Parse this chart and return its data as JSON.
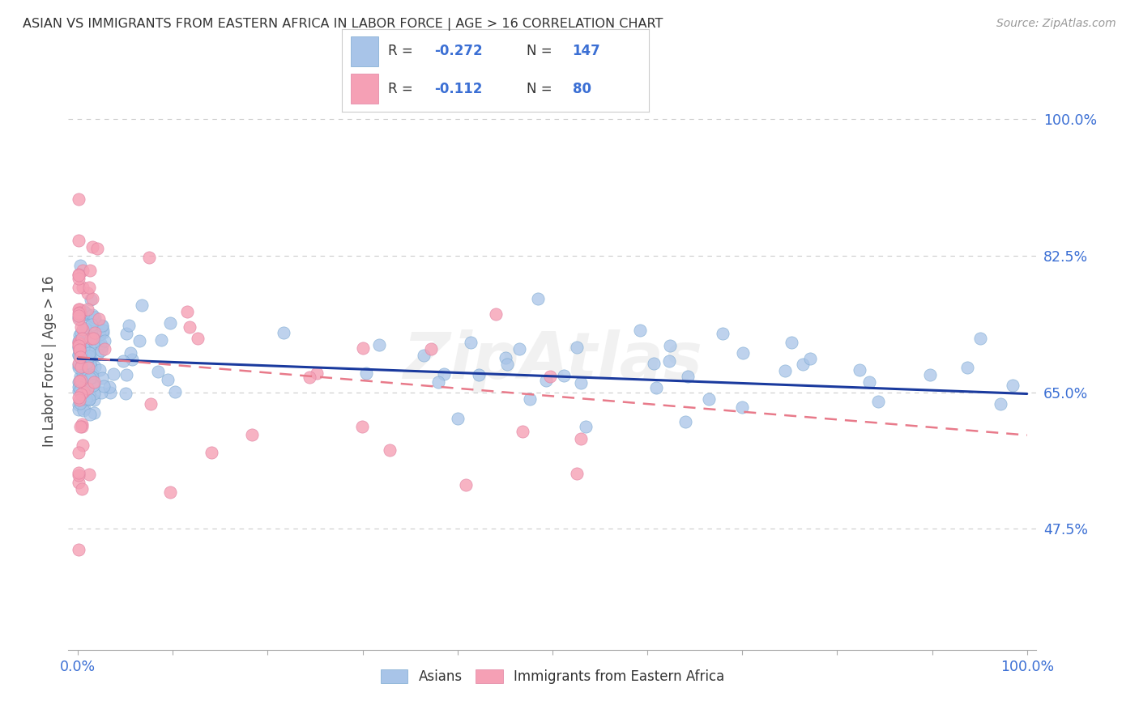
{
  "title": "ASIAN VS IMMIGRANTS FROM EASTERN AFRICA IN LABOR FORCE | AGE > 16 CORRELATION CHART",
  "source": "Source: ZipAtlas.com",
  "ylabel": "In Labor Force | Age > 16",
  "ytick_labels": [
    "47.5%",
    "65.0%",
    "82.5%",
    "100.0%"
  ],
  "ytick_values": [
    0.475,
    0.65,
    0.825,
    1.0
  ],
  "xlim": [
    -0.01,
    1.01
  ],
  "ylim": [
    0.32,
    1.06
  ],
  "watermark": "ZipAtlas",
  "color_asian": "#a8c4e8",
  "color_africa": "#f5a0b5",
  "line_color_asian": "#1a3a9e",
  "line_color_africa": "#e87a8a",
  "background_color": "#ffffff",
  "grid_color": "#cccccc",
  "label_color": "#3b6fd4",
  "asian_line_start_y": 0.693,
  "asian_line_end_y": 0.648,
  "africa_line_start_y": 0.695,
  "africa_line_end_y": 0.595
}
